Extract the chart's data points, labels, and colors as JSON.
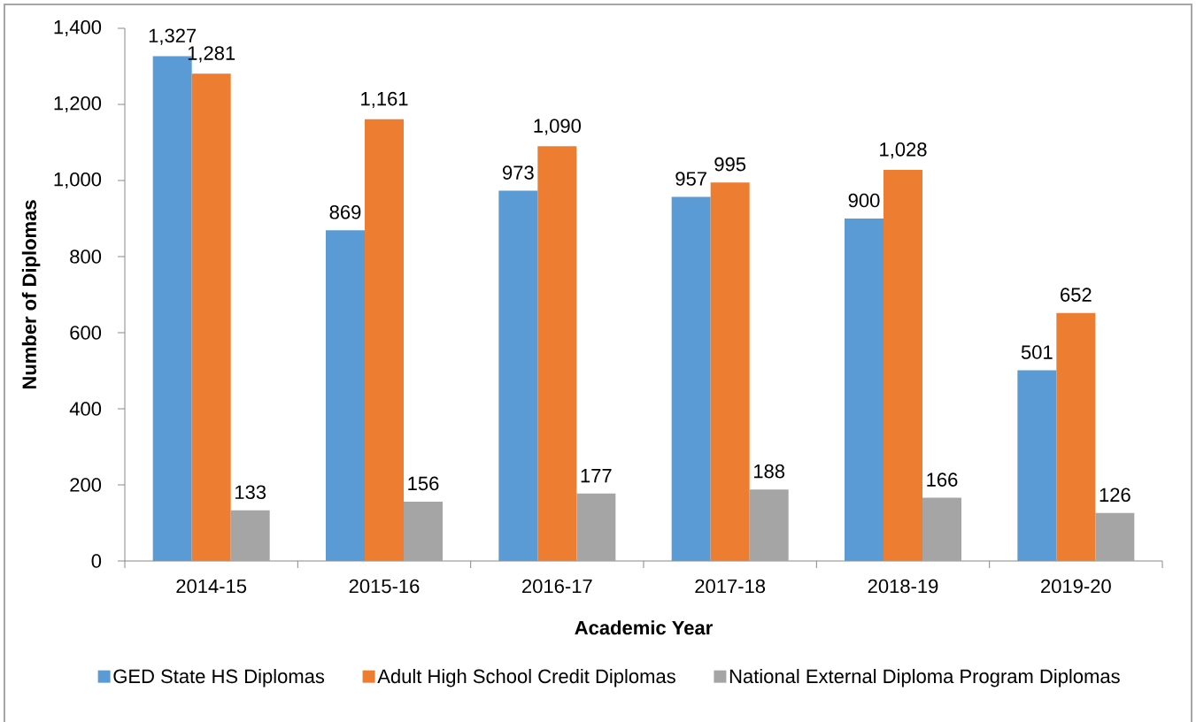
{
  "chart_data": {
    "type": "bar",
    "xlabel": "Academic Year",
    "ylabel": "Number of Diplomas",
    "categories": [
      "2014-15",
      "2015-16",
      "2016-17",
      "2017-18",
      "2018-19",
      "2019-20"
    ],
    "series": [
      {
        "name": "GED State HS Diplomas",
        "color": "#5b9bd5",
        "values": [
          1327,
          869,
          973,
          957,
          900,
          501
        ],
        "value_labels": [
          "1,327",
          "869",
          "973",
          "957",
          "900",
          "501"
        ]
      },
      {
        "name": "Adult High School Credit Diplomas",
        "color": "#ed7d31",
        "values": [
          1281,
          1161,
          1090,
          995,
          1028,
          652
        ],
        "value_labels": [
          "1,281",
          "1,161",
          "1,090",
          "995",
          "1,028",
          "652"
        ]
      },
      {
        "name": "National External Diploma Program Diplomas",
        "color": "#a5a5a5",
        "values": [
          133,
          156,
          177,
          188,
          166,
          126
        ],
        "value_labels": [
          "133",
          "156",
          "177",
          "188",
          "166",
          "126"
        ]
      }
    ],
    "ylim": [
      0,
      1400
    ],
    "yticks": [
      0,
      200,
      400,
      600,
      800,
      {
        "value": 1000,
        "label": "1,000"
      },
      {
        "value": 1200,
        "label": "1,200"
      },
      {
        "value": 1400,
        "label": "1,400"
      }
    ],
    "legend": "bottom"
  }
}
